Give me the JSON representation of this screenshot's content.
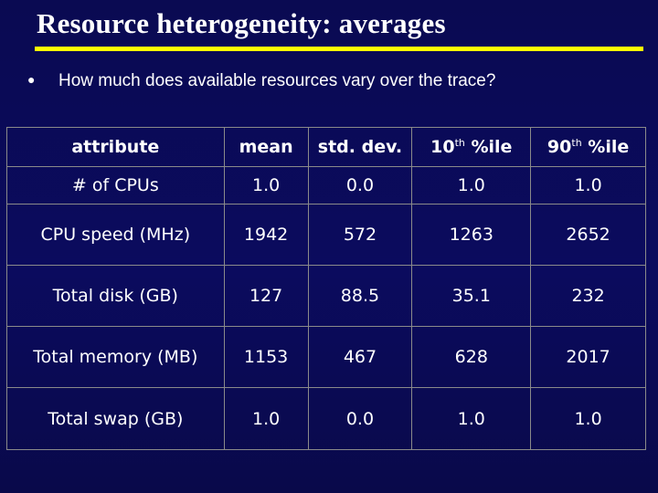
{
  "title": "Resource heterogeneity: averages",
  "bullet": "How much does available resources vary over the trace?",
  "table": {
    "headers": {
      "attribute": "attribute",
      "mean": "mean",
      "stddev": "std. dev.",
      "p10_num": "10",
      "p10_sup": "th",
      "p10_rest": " %ile",
      "p90_num": "90",
      "p90_sup": "th",
      "p90_rest": " %ile"
    },
    "rows": [
      [
        "# of CPUs",
        "1.0",
        "0.0",
        "1.0",
        "1.0"
      ],
      [
        "CPU speed (MHz)",
        "1942",
        "572",
        "1263",
        "2652"
      ],
      [
        "Total disk (GB)",
        "127",
        "88.5",
        "35.1",
        "232"
      ],
      [
        "Total memory (MB)",
        "1153",
        "467",
        "628",
        "2017"
      ],
      [
        "Total swap (GB)",
        "1.0",
        "0.0",
        "1.0",
        "1.0"
      ]
    ]
  },
  "colors": {
    "background": "#0b0b5e",
    "title_rule": "#ffff00",
    "text": "#ffffff",
    "grid": "#8a8a8a"
  }
}
